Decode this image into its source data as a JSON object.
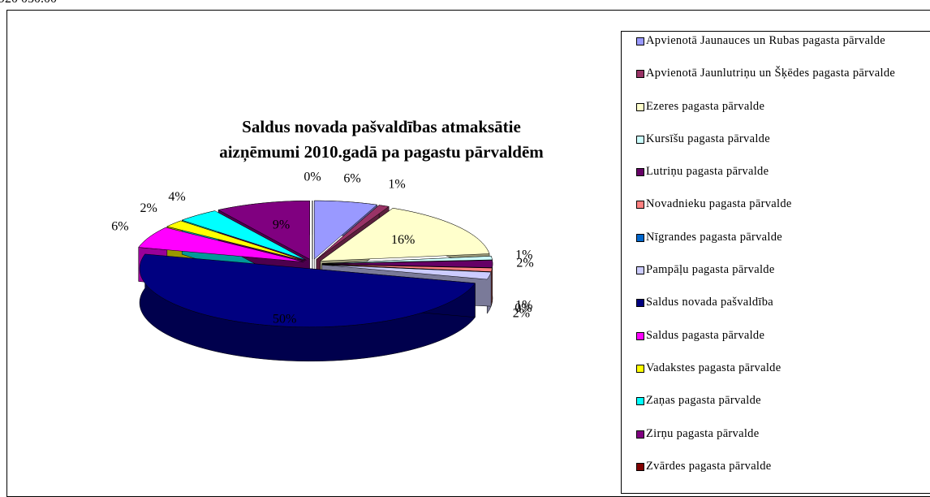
{
  "header_text": "920 050.00",
  "chart_data": {
    "type": "pie",
    "title": [
      "Saldus novada pašvaldības atmaksātie",
      "aizņēmumi 2010.gadā pa pagastu pārvaldēm"
    ],
    "categories": [
      "Apvienotā Jaunauces un Rubas pagasta pārvalde",
      "Apvienotā Jaunlutriņu un Šķēdes pagasta pārvalde",
      "Ezeres pagasta pārvalde",
      "Kursīšu pagasta pārvalde",
      "Lutriņu pagasta pārvalde",
      "Novadnieku pagasta pārvalde",
      "Nīgrandes pagasta pārvalde",
      "Pampāļu pagasta pārvalde",
      "Saldus novada pašvaldība",
      "Saldus pagasta pārvalde",
      "Vadakstes pagasta pārvalde",
      "Zaņas pagasta pārvalde",
      "Zirņu pagasta pārvalde",
      "Zvārdes pagasta pārvalde"
    ],
    "values": [
      6,
      1,
      16,
      1,
      2,
      1,
      0,
      2,
      50,
      6,
      2,
      4,
      9,
      0
    ],
    "value_labels": [
      "6%",
      "1%",
      "16%",
      "1%",
      "2%",
      "1%",
      "0%",
      "2%",
      "50%",
      "6%",
      "2%",
      "4%",
      "9%",
      "0%"
    ],
    "colors": [
      "#9999ff",
      "#993366",
      "#ffffcc",
      "#ccffff",
      "#660066",
      "#ff8080",
      "#0066cc",
      "#ccccff",
      "#000080",
      "#ff00ff",
      "#ffff00",
      "#00ffff",
      "#800080",
      "#800000"
    ],
    "legend": "right"
  }
}
